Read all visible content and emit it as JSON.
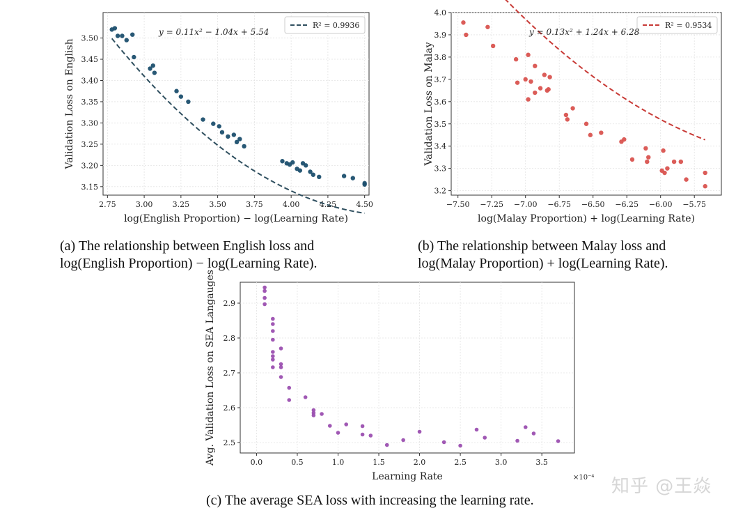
{
  "chart_data": [
    {
      "type": "scatter",
      "xlabel": "log(English Proportion) − log(Learning Rate)",
      "ylabel": "Validation Loss on English",
      "xlim": [
        2.72,
        4.53
      ],
      "ylim": [
        3.13,
        3.56
      ],
      "xticks": [
        "2.75",
        "3.00",
        "3.25",
        "3.50",
        "3.75",
        "4.00",
        "4.25",
        "4.50"
      ],
      "yticks": [
        "3.15",
        "3.20",
        "3.25",
        "3.30",
        "3.35",
        "3.40",
        "3.45",
        "3.50"
      ],
      "grid": true,
      "legend_position": "top-right",
      "equation": "y = 0.11x² − 1.04x + 5.54",
      "color": "#1c4f6e",
      "fit_color": "#2f4f5f",
      "fit": {
        "name": "R² = 0.9936",
        "coeffs": [
          0.11,
          -1.04,
          5.54
        ]
      },
      "points": [
        {
          "x": 2.78,
          "y": 3.52
        },
        {
          "x": 2.8,
          "y": 3.523
        },
        {
          "x": 2.82,
          "y": 3.505
        },
        {
          "x": 2.85,
          "y": 3.505
        },
        {
          "x": 2.88,
          "y": 3.495
        },
        {
          "x": 2.92,
          "y": 3.508
        },
        {
          "x": 2.93,
          "y": 3.455
        },
        {
          "x": 3.04,
          "y": 3.428
        },
        {
          "x": 3.06,
          "y": 3.435
        },
        {
          "x": 3.07,
          "y": 3.418
        },
        {
          "x": 3.22,
          "y": 3.375
        },
        {
          "x": 3.25,
          "y": 3.362
        },
        {
          "x": 3.3,
          "y": 3.35
        },
        {
          "x": 3.4,
          "y": 3.308
        },
        {
          "x": 3.47,
          "y": 3.298
        },
        {
          "x": 3.51,
          "y": 3.292
        },
        {
          "x": 3.53,
          "y": 3.278
        },
        {
          "x": 3.57,
          "y": 3.268
        },
        {
          "x": 3.61,
          "y": 3.272
        },
        {
          "x": 3.63,
          "y": 3.255
        },
        {
          "x": 3.65,
          "y": 3.262
        },
        {
          "x": 3.68,
          "y": 3.245
        },
        {
          "x": 3.94,
          "y": 3.21
        },
        {
          "x": 3.97,
          "y": 3.205
        },
        {
          "x": 3.99,
          "y": 3.202
        },
        {
          "x": 4.01,
          "y": 3.207
        },
        {
          "x": 4.04,
          "y": 3.192
        },
        {
          "x": 4.06,
          "y": 3.188
        },
        {
          "x": 4.08,
          "y": 3.205
        },
        {
          "x": 4.1,
          "y": 3.2
        },
        {
          "x": 4.13,
          "y": 3.185
        },
        {
          "x": 4.15,
          "y": 3.178
        },
        {
          "x": 4.19,
          "y": 3.173
        },
        {
          "x": 4.36,
          "y": 3.175
        },
        {
          "x": 4.42,
          "y": 3.17
        },
        {
          "x": 4.5,
          "y": 3.158
        },
        {
          "x": 4.5,
          "y": 3.155
        }
      ]
    },
    {
      "type": "scatter",
      "xlabel": "log(Malay Proportion) + log(Learning Rate)",
      "ylabel": "Validation Loss on Malay",
      "xlim": [
        -7.55,
        -5.55
      ],
      "ylim": [
        3.18,
        4.0
      ],
      "xticks": [
        "−7.50",
        "−7.25",
        "−7.00",
        "−6.75",
        "−6.50",
        "−6.25",
        "−6.00",
        "−5.75"
      ],
      "yticks": [
        "3.2",
        "3.3",
        "3.4",
        "3.5",
        "3.6",
        "3.7",
        "3.8",
        "3.9",
        "4.0"
      ],
      "grid": true,
      "legend_position": "top-right",
      "equation": "y = 0.13x² + 1.24x + 6.28",
      "color": "#d9534f",
      "fit_color": "#c83a36",
      "fit": {
        "name": "R² = 0.9534",
        "coeffs": [
          0.13,
          1.24,
          6.28
        ]
      },
      "points": [
        {
          "x": -7.46,
          "y": 3.955
        },
        {
          "x": -7.44,
          "y": 3.9
        },
        {
          "x": -7.28,
          "y": 3.935
        },
        {
          "x": -7.24,
          "y": 3.85
        },
        {
          "x": -7.07,
          "y": 3.79
        },
        {
          "x": -7.06,
          "y": 3.685
        },
        {
          "x": -7.0,
          "y": 3.7
        },
        {
          "x": -6.98,
          "y": 3.81
        },
        {
          "x": -6.98,
          "y": 3.61
        },
        {
          "x": -6.96,
          "y": 3.69
        },
        {
          "x": -6.93,
          "y": 3.76
        },
        {
          "x": -6.93,
          "y": 3.64
        },
        {
          "x": -6.89,
          "y": 3.66
        },
        {
          "x": -6.86,
          "y": 3.72
        },
        {
          "x": -6.84,
          "y": 3.65
        },
        {
          "x": -6.82,
          "y": 3.71
        },
        {
          "x": -6.83,
          "y": 3.655
        },
        {
          "x": -6.7,
          "y": 3.54
        },
        {
          "x": -6.69,
          "y": 3.52
        },
        {
          "x": -6.65,
          "y": 3.57
        },
        {
          "x": -6.55,
          "y": 3.5
        },
        {
          "x": -6.52,
          "y": 3.45
        },
        {
          "x": -6.44,
          "y": 3.46
        },
        {
          "x": -6.29,
          "y": 3.42
        },
        {
          "x": -6.27,
          "y": 3.43
        },
        {
          "x": -6.21,
          "y": 3.34
        },
        {
          "x": -6.11,
          "y": 3.39
        },
        {
          "x": -6.09,
          "y": 3.35
        },
        {
          "x": -6.1,
          "y": 3.33
        },
        {
          "x": -5.99,
          "y": 3.29
        },
        {
          "x": -5.98,
          "y": 3.38
        },
        {
          "x": -5.97,
          "y": 3.28
        },
        {
          "x": -5.95,
          "y": 3.3
        },
        {
          "x": -5.9,
          "y": 3.33
        },
        {
          "x": -5.85,
          "y": 3.33
        },
        {
          "x": -5.81,
          "y": 3.25
        },
        {
          "x": -5.67,
          "y": 3.28
        },
        {
          "x": -5.67,
          "y": 3.22
        }
      ]
    },
    {
      "type": "scatter",
      "xlabel": "Learning Rate",
      "ylabel": "Avg. Validation Loss on SEA Langauges",
      "x_multiplier": "×10⁻⁴",
      "xlim": [
        -0.2,
        3.9
      ],
      "ylim": [
        2.47,
        2.96
      ],
      "xticks": [
        "0.0",
        "0.5",
        "1.0",
        "1.5",
        "2.0",
        "2.5",
        "3.0",
        "3.5"
      ],
      "yticks": [
        "2.5",
        "2.6",
        "2.7",
        "2.8",
        "2.9"
      ],
      "grid": true,
      "color": "#9b4fb0",
      "points": [
        {
          "x": 0.1,
          "y": 2.945
        },
        {
          "x": 0.1,
          "y": 2.935
        },
        {
          "x": 0.1,
          "y": 2.915
        },
        {
          "x": 0.1,
          "y": 2.897
        },
        {
          "x": 0.2,
          "y": 2.855
        },
        {
          "x": 0.2,
          "y": 2.84
        },
        {
          "x": 0.2,
          "y": 2.82
        },
        {
          "x": 0.2,
          "y": 2.795
        },
        {
          "x": 0.2,
          "y": 2.76
        },
        {
          "x": 0.2,
          "y": 2.748
        },
        {
          "x": 0.2,
          "y": 2.738
        },
        {
          "x": 0.2,
          "y": 2.716
        },
        {
          "x": 0.3,
          "y": 2.77
        },
        {
          "x": 0.3,
          "y": 2.725
        },
        {
          "x": 0.3,
          "y": 2.716
        },
        {
          "x": 0.3,
          "y": 2.688
        },
        {
          "x": 0.4,
          "y": 2.657
        },
        {
          "x": 0.4,
          "y": 2.622
        },
        {
          "x": 0.6,
          "y": 2.63
        },
        {
          "x": 0.7,
          "y": 2.593
        },
        {
          "x": 0.7,
          "y": 2.585
        },
        {
          "x": 0.7,
          "y": 2.578
        },
        {
          "x": 0.8,
          "y": 2.582
        },
        {
          "x": 0.9,
          "y": 2.548
        },
        {
          "x": 1.0,
          "y": 2.528
        },
        {
          "x": 1.1,
          "y": 2.552
        },
        {
          "x": 1.3,
          "y": 2.547
        },
        {
          "x": 1.3,
          "y": 2.523
        },
        {
          "x": 1.4,
          "y": 2.52
        },
        {
          "x": 1.6,
          "y": 2.493
        },
        {
          "x": 1.8,
          "y": 2.507
        },
        {
          "x": 2.0,
          "y": 2.531
        },
        {
          "x": 2.3,
          "y": 2.501
        },
        {
          "x": 2.5,
          "y": 2.491
        },
        {
          "x": 2.7,
          "y": 2.537
        },
        {
          "x": 2.8,
          "y": 2.514
        },
        {
          "x": 3.2,
          "y": 2.505
        },
        {
          "x": 3.3,
          "y": 2.544
        },
        {
          "x": 3.4,
          "y": 2.526
        },
        {
          "x": 3.7,
          "y": 2.504
        }
      ]
    }
  ],
  "captions": {
    "a": [
      "(a) The relationship between English loss and",
      "log(English Proportion) − log(Learning Rate)."
    ],
    "b": [
      "(b) The relationship between Malay loss and",
      "log(Malay Proportion) + log(Learning Rate)."
    ],
    "c": "(c) The average SEA loss with increasing the learning rate."
  },
  "watermark": "知乎 @王焱"
}
